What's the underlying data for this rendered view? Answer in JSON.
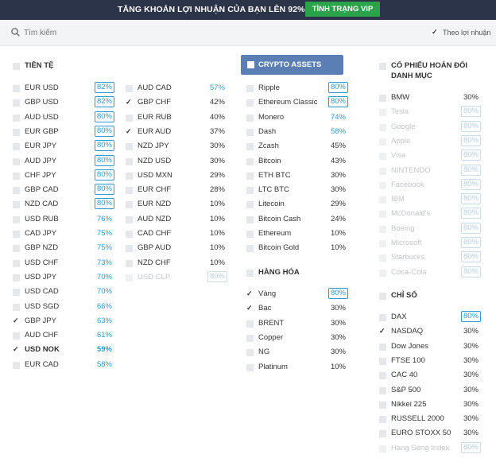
{
  "banner": {
    "text": "TĂNG KHOẢN LỢI NHUẬN CỦA BẠN LÊN 92%",
    "button": "TÌNH TRẠNG VIP"
  },
  "search": {
    "placeholder": "Tìm kiếm",
    "profit_toggle": "Theo lợi nhuận",
    "profit_checked": true
  },
  "accent_color": "#2c9ad8",
  "sections": {
    "currency": {
      "title": "TIỀN TỆ"
    },
    "crypto": {
      "title": "CRYPTO ASSETS"
    },
    "commodities": {
      "title": "HÀNG HÓA"
    },
    "stocks": {
      "title": "CỔ PHIẾU HOÁN ĐỔI DANH MỤC",
      "title_l1": "CỔ PHIẾU HOÁN ĐỔI",
      "title_l2": "DANH MỤC"
    },
    "indices": {
      "title": "CHỈ SỐ"
    }
  },
  "currency_col1": [
    {
      "name": "EUR USD",
      "value": "82%",
      "style": "box"
    },
    {
      "name": "GBP USD",
      "value": "82%",
      "style": "box"
    },
    {
      "name": "AUD USD",
      "value": "80%",
      "style": "box"
    },
    {
      "name": "EUR GBP",
      "value": "80%",
      "style": "box"
    },
    {
      "name": "EUR JPY",
      "value": "80%",
      "style": "box"
    },
    {
      "name": "AUD JPY",
      "value": "80%",
      "style": "box"
    },
    {
      "name": "CHF JPY",
      "value": "80%",
      "style": "box"
    },
    {
      "name": "GBP CAD",
      "value": "80%",
      "style": "box"
    },
    {
      "name": "NZD CAD",
      "value": "80%",
      "style": "box"
    },
    {
      "name": "USD RUB",
      "value": "76%",
      "style": "hi"
    },
    {
      "name": "CAD JPY",
      "value": "75%",
      "style": "hi"
    },
    {
      "name": "GBP NZD",
      "value": "75%",
      "style": "hi"
    },
    {
      "name": "USD CHF",
      "value": "73%",
      "style": "hi"
    },
    {
      "name": "USD JPY",
      "value": "70%",
      "style": "hi"
    },
    {
      "name": "USD CAD",
      "value": "70%",
      "style": "hi"
    },
    {
      "name": "USD SGD",
      "value": "66%",
      "style": "hi"
    },
    {
      "name": "GBP JPY",
      "value": "63%",
      "style": "hi",
      "checked": true
    },
    {
      "name": "AUD CHF",
      "value": "61%",
      "style": "hi"
    },
    {
      "name": "USD NOK",
      "value": "59%",
      "style": "hi",
      "checked": true,
      "bold": true
    },
    {
      "name": "EUR CAD",
      "value": "58%",
      "style": "hi"
    }
  ],
  "currency_col2": [
    {
      "name": "AUD CAD",
      "value": "57%",
      "style": "hi"
    },
    {
      "name": "GBP CHF",
      "value": "42%",
      "style": "plain",
      "checked": true
    },
    {
      "name": "EUR RUB",
      "value": "40%",
      "style": "plain"
    },
    {
      "name": "EUR AUD",
      "value": "37%",
      "style": "plain",
      "checked": true
    },
    {
      "name": "NZD JPY",
      "value": "30%",
      "style": "plain"
    },
    {
      "name": "NZD USD",
      "value": "30%",
      "style": "plain"
    },
    {
      "name": "USD MXN",
      "value": "29%",
      "style": "plain"
    },
    {
      "name": "EUR CHF",
      "value": "28%",
      "style": "plain"
    },
    {
      "name": "EUR NZD",
      "value": "10%",
      "style": "plain"
    },
    {
      "name": "AUD NZD",
      "value": "10%",
      "style": "plain"
    },
    {
      "name": "CAD CHF",
      "value": "10%",
      "style": "plain"
    },
    {
      "name": "GBP AUD",
      "value": "10%",
      "style": "plain"
    },
    {
      "name": "NZD CHF",
      "value": "10%",
      "style": "plain"
    },
    {
      "name": "USD CLP",
      "value": "80%",
      "style": "box",
      "dim": true
    }
  ],
  "crypto": [
    {
      "name": "Ripple",
      "value": "80%",
      "style": "box"
    },
    {
      "name": "Ethereum Classic",
      "value": "80%",
      "style": "box"
    },
    {
      "name": "Monero",
      "value": "74%",
      "style": "hi"
    },
    {
      "name": "Dash",
      "value": "58%",
      "style": "hi"
    },
    {
      "name": "Zcash",
      "value": "45%",
      "style": "plain"
    },
    {
      "name": "Bitcoin",
      "value": "43%",
      "style": "plain"
    },
    {
      "name": "ETH BTC",
      "value": "30%",
      "style": "plain"
    },
    {
      "name": "LTC BTC",
      "value": "30%",
      "style": "plain"
    },
    {
      "name": "Litecoin",
      "value": "29%",
      "style": "plain"
    },
    {
      "name": "Bitcoin Cash",
      "value": "24%",
      "style": "plain"
    },
    {
      "name": "Ethereum",
      "value": "10%",
      "style": "plain"
    },
    {
      "name": "Bitcoin Gold",
      "value": "10%",
      "style": "plain"
    }
  ],
  "commodities": [
    {
      "name": "Vàng",
      "value": "80%",
      "style": "box",
      "checked": true
    },
    {
      "name": "Bạc",
      "value": "30%",
      "style": "plain",
      "checked": true
    },
    {
      "name": "BRENT",
      "value": "30%",
      "style": "plain"
    },
    {
      "name": "Copper",
      "value": "30%",
      "style": "plain"
    },
    {
      "name": "NG",
      "value": "30%",
      "style": "plain"
    },
    {
      "name": "Platinum",
      "value": "10%",
      "style": "plain"
    }
  ],
  "stocks": [
    {
      "name": "BMW",
      "value": "30%",
      "style": "plain"
    },
    {
      "name": "Tesla",
      "value": "80%",
      "style": "box",
      "dim": true
    },
    {
      "name": "Google",
      "value": "80%",
      "style": "box",
      "dim": true
    },
    {
      "name": "Apple",
      "value": "80%",
      "style": "box",
      "dim": true
    },
    {
      "name": "Visa",
      "value": "80%",
      "style": "box",
      "dim": true
    },
    {
      "name": "NINTENDO",
      "value": "80%",
      "style": "box",
      "dim": true
    },
    {
      "name": "Facebook",
      "value": "80%",
      "style": "box",
      "dim": true
    },
    {
      "name": "IBM",
      "value": "80%",
      "style": "box",
      "dim": true
    },
    {
      "name": "McDonald's",
      "value": "80%",
      "style": "box",
      "dim": true
    },
    {
      "name": "Boeing",
      "value": "80%",
      "style": "box",
      "dim": true
    },
    {
      "name": "Microsoft",
      "value": "80%",
      "style": "box",
      "dim": true
    },
    {
      "name": "Starbucks",
      "value": "80%",
      "style": "box",
      "dim": true
    },
    {
      "name": "Coca-Cola",
      "value": "80%",
      "style": "box",
      "dim": true
    }
  ],
  "indices": [
    {
      "name": "DAX",
      "value": "80%",
      "style": "box"
    },
    {
      "name": "NASDAQ",
      "value": "30%",
      "style": "plain",
      "checked": true
    },
    {
      "name": "Dow Jones",
      "value": "30%",
      "style": "plain"
    },
    {
      "name": "FTSE 100",
      "value": "30%",
      "style": "plain"
    },
    {
      "name": "CAC 40",
      "value": "30%",
      "style": "plain"
    },
    {
      "name": "S&P 500",
      "value": "30%",
      "style": "plain"
    },
    {
      "name": "Nikkei 225",
      "value": "30%",
      "style": "plain"
    },
    {
      "name": "RUSSELL 2000",
      "value": "30%",
      "style": "plain"
    },
    {
      "name": "EURO STOXX 50",
      "value": "30%",
      "style": "plain"
    },
    {
      "name": "Hang Seng Index",
      "value": "80%",
      "style": "box",
      "dim": true
    }
  ]
}
